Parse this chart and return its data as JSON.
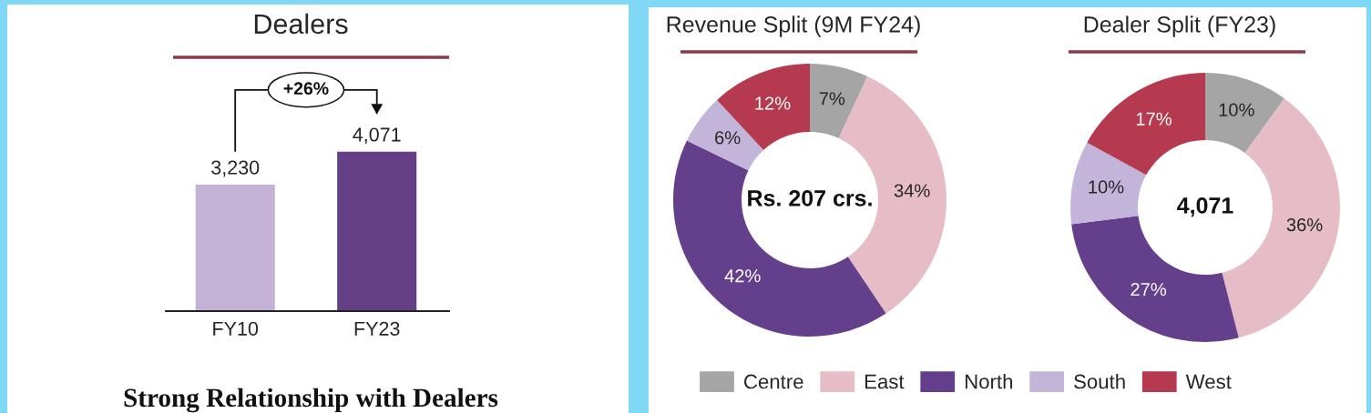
{
  "chart_data": [
    {
      "type": "bar",
      "title": "Dealers",
      "categories": [
        "FY10",
        "FY23"
      ],
      "values": [
        3230,
        4071
      ],
      "colors": [
        "#c3b1d6",
        "#643f86"
      ],
      "value_labels": [
        "3,230",
        "4,071"
      ],
      "tick_labels": "x",
      "annotations": [
        "+26%",
        "Strong Relationship with Dealers"
      ]
    },
    {
      "type": "donut",
      "title": "Revenue Split (9M FY24)",
      "categories": [
        "Centre",
        "East",
        "North",
        "South",
        "West"
      ],
      "values": [
        7,
        34,
        42,
        6,
        12
      ],
      "colors": [
        "#a5a5a5",
        "#e6bcc6",
        "#643f8c",
        "#c3b4da",
        "#b53a4f"
      ],
      "value_labels": [
        "7%",
        "34%",
        "42%",
        "6%",
        "12%"
      ],
      "annotations": [
        "Rs. 207 crs."
      ],
      "legend": "bottom"
    },
    {
      "type": "donut",
      "title": "Dealer Split (FY23)",
      "categories": [
        null,
        null,
        null,
        null,
        null
      ],
      "values": [
        10,
        36,
        27,
        10,
        17
      ],
      "colors": [
        "#a5a5a5",
        "#e6bcc6",
        "#643f8c",
        "#c3b4da",
        "#b53a4f"
      ],
      "value_labels": [
        "10%",
        "36%",
        "27%",
        "10%",
        "17%"
      ],
      "annotations": [
        "4,071"
      ]
    }
  ]
}
